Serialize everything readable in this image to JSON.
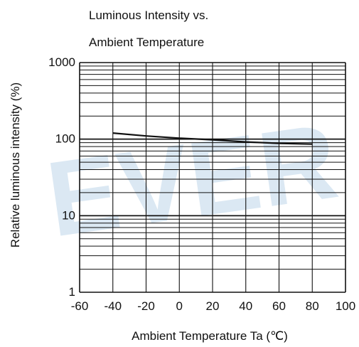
{
  "chart_data": {
    "type": "line",
    "title_lines": [
      "Luminous Intensity vs.",
      "Ambient Temperature"
    ],
    "xlabel": "Ambient Temperature Ta (℃)",
    "ylabel": "Relative luminous intensity (%)",
    "xlim": [
      -60,
      100
    ],
    "ylim": [
      1,
      1000
    ],
    "yscale": "log",
    "grid": true,
    "x_ticks": [
      -60,
      -40,
      -20,
      0,
      20,
      40,
      60,
      80,
      100
    ],
    "x_tick_labels": [
      "-60",
      "-40",
      "-20",
      "0",
      "20",
      "40",
      "60",
      "80",
      "100"
    ],
    "y_ticks": [
      1,
      10,
      100,
      1000
    ],
    "y_tick_labels": [
      "1",
      "10",
      "100",
      "1000"
    ],
    "series": [
      {
        "x": [
          -40,
          -20,
          0,
          20,
          40,
          60,
          80
        ],
        "y": [
          120,
          110,
          103,
          98,
          92,
          88,
          86
        ]
      }
    ],
    "watermark": "EVER",
    "colors": {
      "grid": "#111111",
      "curve": "#111111",
      "watermark": "#cfe1ef"
    }
  }
}
